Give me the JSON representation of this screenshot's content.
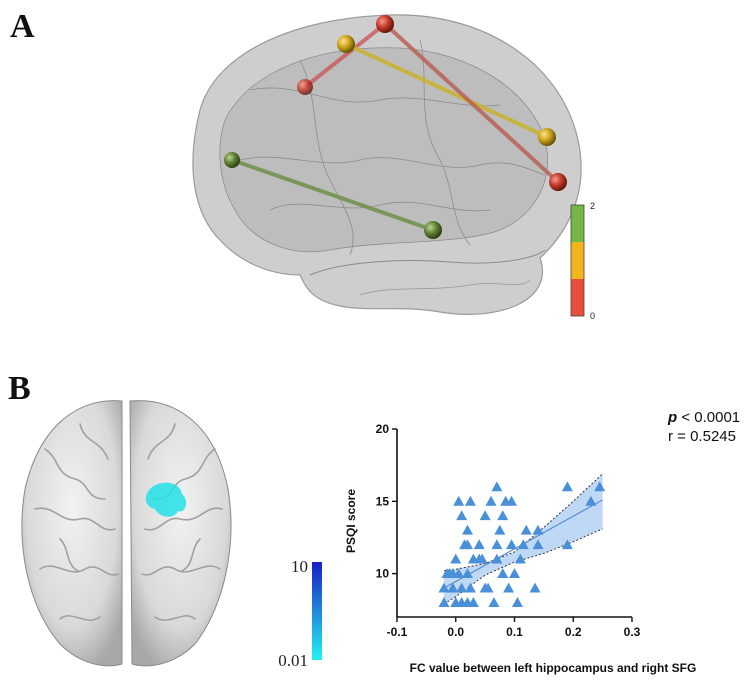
{
  "panels": {
    "a": {
      "letter": "A"
    },
    "b": {
      "letter": "B"
    }
  },
  "connectivity_colorbar": {
    "max_label": "2",
    "min_label": "0",
    "colors": [
      "#74b843",
      "#f2b61c",
      "#e74c3c"
    ]
  },
  "connections": [
    {
      "color": "#c9585a",
      "level": 0
    },
    {
      "color": "#c9b32a",
      "level": 1
    },
    {
      "color": "#b85a50",
      "level": 0
    },
    {
      "color": "#6f8f4a",
      "level": 2
    }
  ],
  "cluster_colorbar": {
    "max_label": "10",
    "min_label": "0.01",
    "colors": [
      "#1a1fc4",
      "#22f2f2"
    ]
  },
  "chart_data": {
    "type": "scatter",
    "title": "",
    "xlabel": "FC value between left hippocampus and right SFG",
    "ylabel": "PSQI score",
    "xlim": [
      -0.1,
      0.3
    ],
    "ylim": [
      7,
      20
    ],
    "xticks": [
      "-0.1",
      "0.0",
      "0.1",
      "0.2",
      "0.3"
    ],
    "yticks": [
      "10",
      "15",
      "20"
    ],
    "marker": "triangle",
    "color": "#4a90d9",
    "stats": {
      "p_symbol": "p",
      "p_text": " < 0.0001",
      "r_text": "r = 0.5245"
    },
    "fit_line": {
      "x": [
        -0.02,
        0.25
      ],
      "y": [
        9.0,
        15.1
      ]
    },
    "confidence_band": {
      "x": [
        -0.02,
        0.0,
        0.05,
        0.1,
        0.15,
        0.2,
        0.25
      ],
      "upper": [
        10.2,
        10.3,
        10.7,
        11.5,
        13.2,
        15.0,
        16.9
      ],
      "lower": [
        7.9,
        8.4,
        9.9,
        10.8,
        11.4,
        12.2,
        13.1
      ]
    },
    "points": [
      {
        "x": -0.02,
        "y": 8
      },
      {
        "x": -0.02,
        "y": 9
      },
      {
        "x": -0.015,
        "y": 10
      },
      {
        "x": -0.01,
        "y": 10
      },
      {
        "x": -0.005,
        "y": 9
      },
      {
        "x": -0.005,
        "y": 10
      },
      {
        "x": 0.0,
        "y": 11
      },
      {
        "x": 0.0,
        "y": 8
      },
      {
        "x": 0.005,
        "y": 10
      },
      {
        "x": 0.005,
        "y": 15
      },
      {
        "x": 0.01,
        "y": 8
      },
      {
        "x": 0.01,
        "y": 9
      },
      {
        "x": 0.01,
        "y": 14
      },
      {
        "x": 0.015,
        "y": 12
      },
      {
        "x": 0.02,
        "y": 10
      },
      {
        "x": 0.02,
        "y": 12
      },
      {
        "x": 0.02,
        "y": 13
      },
      {
        "x": 0.02,
        "y": 8
      },
      {
        "x": 0.025,
        "y": 9
      },
      {
        "x": 0.025,
        "y": 15
      },
      {
        "x": 0.03,
        "y": 11
      },
      {
        "x": 0.03,
        "y": 8
      },
      {
        "x": 0.04,
        "y": 11
      },
      {
        "x": 0.04,
        "y": 12
      },
      {
        "x": 0.045,
        "y": 11
      },
      {
        "x": 0.05,
        "y": 9
      },
      {
        "x": 0.05,
        "y": 14
      },
      {
        "x": 0.055,
        "y": 9
      },
      {
        "x": 0.06,
        "y": 15
      },
      {
        "x": 0.065,
        "y": 8
      },
      {
        "x": 0.07,
        "y": 16
      },
      {
        "x": 0.07,
        "y": 12
      },
      {
        "x": 0.07,
        "y": 11
      },
      {
        "x": 0.075,
        "y": 13
      },
      {
        "x": 0.08,
        "y": 10
      },
      {
        "x": 0.08,
        "y": 14
      },
      {
        "x": 0.085,
        "y": 15
      },
      {
        "x": 0.09,
        "y": 9
      },
      {
        "x": 0.095,
        "y": 15
      },
      {
        "x": 0.095,
        "y": 12
      },
      {
        "x": 0.1,
        "y": 10
      },
      {
        "x": 0.105,
        "y": 8
      },
      {
        "x": 0.11,
        "y": 11
      },
      {
        "x": 0.115,
        "y": 12
      },
      {
        "x": 0.12,
        "y": 13
      },
      {
        "x": 0.135,
        "y": 9
      },
      {
        "x": 0.14,
        "y": 13
      },
      {
        "x": 0.14,
        "y": 12
      },
      {
        "x": 0.19,
        "y": 16
      },
      {
        "x": 0.19,
        "y": 12
      },
      {
        "x": 0.23,
        "y": 15
      },
      {
        "x": 0.245,
        "y": 16
      }
    ]
  }
}
